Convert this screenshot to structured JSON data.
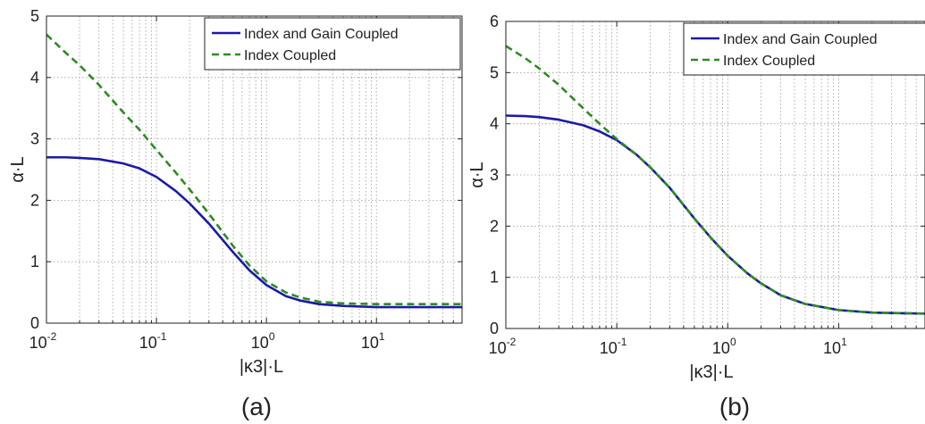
{
  "chart_data": [
    {
      "type": "line",
      "caption": "(a)",
      "xlabel": "|κ3|·L",
      "ylabel": "α·L",
      "xscale": "log",
      "xlim": [
        0.01,
        60
      ],
      "ylim": [
        0,
        5
      ],
      "yticks": [
        "0",
        "1",
        "2",
        "3",
        "4",
        "5"
      ],
      "xticks": [
        {
          "base": "10",
          "exp": "-2"
        },
        {
          "base": "10",
          "exp": "-1"
        },
        {
          "base": "10",
          "exp": "0"
        },
        {
          "base": "10",
          "exp": "1"
        }
      ],
      "grid": true,
      "legend_position": "top-right",
      "series": [
        {
          "name": "Index and Gain Coupled",
          "color": "#1a1aa8",
          "style": "solid",
          "x": [
            0.01,
            0.015,
            0.02,
            0.03,
            0.05,
            0.07,
            0.1,
            0.15,
            0.2,
            0.3,
            0.5,
            0.7,
            1,
            1.5,
            2,
            3,
            5,
            10,
            20,
            60
          ],
          "y": [
            2.7,
            2.7,
            2.69,
            2.67,
            2.6,
            2.52,
            2.38,
            2.15,
            1.95,
            1.62,
            1.15,
            0.86,
            0.62,
            0.44,
            0.37,
            0.31,
            0.28,
            0.26,
            0.26,
            0.26
          ]
        },
        {
          "name": "Index Coupled",
          "color": "#2e8b22",
          "style": "dashed",
          "x": [
            0.01,
            0.015,
            0.02,
            0.03,
            0.05,
            0.07,
            0.1,
            0.15,
            0.2,
            0.3,
            0.5,
            0.7,
            1,
            1.5,
            2,
            3,
            5,
            10,
            20,
            60
          ],
          "y": [
            4.7,
            4.4,
            4.2,
            3.88,
            3.43,
            3.15,
            2.82,
            2.45,
            2.18,
            1.78,
            1.25,
            0.94,
            0.68,
            0.5,
            0.42,
            0.35,
            0.32,
            0.31,
            0.31,
            0.31
          ]
        }
      ]
    },
    {
      "type": "line",
      "caption": "(b)",
      "xlabel": "|κ3|·L",
      "ylabel": "α·L",
      "xscale": "log",
      "xlim": [
        0.01,
        60
      ],
      "ylim": [
        0,
        6
      ],
      "yticks": [
        "0",
        "1",
        "2",
        "3",
        "4",
        "5",
        "6"
      ],
      "xticks": [
        {
          "base": "10",
          "exp": "-2"
        },
        {
          "base": "10",
          "exp": "-1"
        },
        {
          "base": "10",
          "exp": "0"
        },
        {
          "base": "10",
          "exp": "1"
        }
      ],
      "grid": true,
      "legend_position": "top-right",
      "series": [
        {
          "name": "Index and Gain Coupled",
          "color": "#1a1aa8",
          "style": "solid",
          "x": [
            0.01,
            0.015,
            0.02,
            0.03,
            0.05,
            0.07,
            0.1,
            0.15,
            0.2,
            0.3,
            0.5,
            0.7,
            1,
            1.5,
            2,
            3,
            5,
            10,
            20,
            60
          ],
          "y": [
            4.16,
            4.15,
            4.13,
            4.08,
            3.97,
            3.85,
            3.68,
            3.4,
            3.15,
            2.75,
            2.15,
            1.78,
            1.42,
            1.08,
            0.88,
            0.65,
            0.48,
            0.36,
            0.31,
            0.29
          ]
        },
        {
          "name": "Index Coupled",
          "color": "#2e8b22",
          "style": "dashed",
          "x": [
            0.01,
            0.015,
            0.02,
            0.03,
            0.05,
            0.07,
            0.1,
            0.15,
            0.2,
            0.3,
            0.5,
            0.7,
            1,
            1.5,
            2,
            3,
            5,
            10,
            20,
            60
          ],
          "y": [
            5.52,
            5.28,
            5.08,
            4.76,
            4.3,
            4.0,
            3.7,
            3.4,
            3.15,
            2.75,
            2.15,
            1.78,
            1.42,
            1.08,
            0.88,
            0.65,
            0.48,
            0.36,
            0.31,
            0.29
          ]
        }
      ]
    }
  ]
}
